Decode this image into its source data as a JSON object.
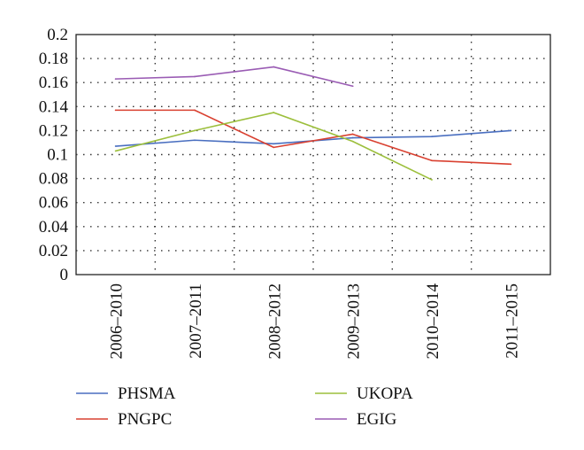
{
  "chart_data": {
    "type": "line",
    "title": "",
    "xlabel": "",
    "ylabel": "",
    "categories": [
      "2006–2010",
      "2007–2011",
      "2008–2012",
      "2009–2013",
      "2010–2014",
      "2011–2015"
    ],
    "ylim": [
      0,
      0.2
    ],
    "yticks": [
      0,
      0.02,
      0.04,
      0.06,
      0.08,
      0.1,
      0.12,
      0.14,
      0.16,
      0.18,
      0.2
    ],
    "ytick_labels": [
      "0",
      "0.02",
      "0.04",
      "0.06",
      "0.08",
      "0.1",
      "0.12",
      "0.14",
      "0.16",
      "0.18",
      "0.2"
    ],
    "grid": true,
    "legend_position": "bottom",
    "series": [
      {
        "name": "PHSMA",
        "color": "#4a6fc0",
        "values": [
          0.107,
          0.112,
          0.109,
          0.114,
          0.115,
          0.12
        ]
      },
      {
        "name": "PNGPC",
        "color": "#d94030",
        "values": [
          0.137,
          0.137,
          0.106,
          0.117,
          0.095,
          0.092
        ]
      },
      {
        "name": "UKOPA",
        "color": "#9cbf3c",
        "values": [
          0.103,
          0.12,
          0.135,
          0.111,
          0.079,
          null
        ]
      },
      {
        "name": "EGIG",
        "color": "#9a5cb4",
        "values": [
          0.163,
          0.165,
          0.173,
          0.157,
          null,
          null
        ]
      }
    ]
  }
}
